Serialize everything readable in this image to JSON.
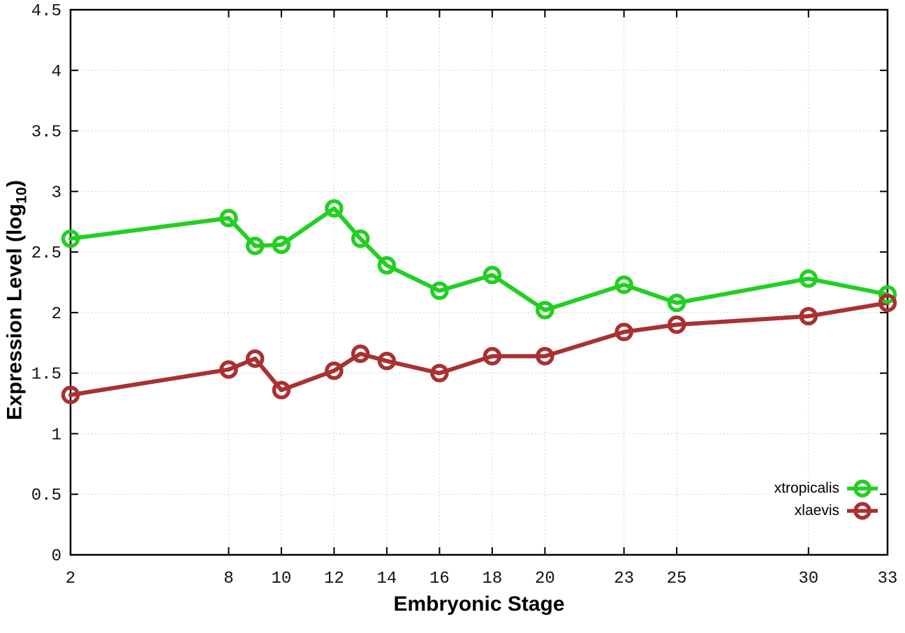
{
  "chart_data": {
    "type": "line",
    "title": "",
    "xlabel": "Embryonic Stage",
    "ylabel": {
      "prefix": "Expression Level (log",
      "subscript": "10",
      "suffix": ")"
    },
    "xlim": [
      2,
      33
    ],
    "ylim": [
      0,
      4.5
    ],
    "grid": true,
    "legend_position": "bottom-right",
    "x_ticks": [
      {
        "value": 2,
        "label": "2"
      },
      {
        "value": 8,
        "label": "8"
      },
      {
        "value": 10,
        "label": "10"
      },
      {
        "value": 12,
        "label": "12"
      },
      {
        "value": 14,
        "label": "14"
      },
      {
        "value": 16,
        "label": "16"
      },
      {
        "value": 18,
        "label": "18"
      },
      {
        "value": 20,
        "label": "20"
      },
      {
        "value": 23,
        "label": "23"
      },
      {
        "value": 25,
        "label": "25"
      },
      {
        "value": 30,
        "label": "30"
      },
      {
        "value": 33,
        "label": "33"
      }
    ],
    "y_ticks": [
      {
        "value": 0,
        "label": "0"
      },
      {
        "value": 0.5,
        "label": "0.5"
      },
      {
        "value": 1,
        "label": "1"
      },
      {
        "value": 1.5,
        "label": "1.5"
      },
      {
        "value": 2,
        "label": "2"
      },
      {
        "value": 2.5,
        "label": "2.5"
      },
      {
        "value": 3,
        "label": "3"
      },
      {
        "value": 3.5,
        "label": "3.5"
      },
      {
        "value": 4,
        "label": "4"
      },
      {
        "value": 4.5,
        "label": "4.5"
      }
    ],
    "x": [
      2,
      8,
      9,
      10,
      12,
      13,
      14,
      16,
      18,
      20,
      23,
      25,
      30,
      33
    ],
    "series": [
      {
        "name": "xtropicalis",
        "color": "#22cf22",
        "marker": "open-circle",
        "values": [
          2.61,
          2.78,
          2.55,
          2.56,
          2.86,
          2.61,
          2.39,
          2.18,
          2.31,
          2.02,
          2.23,
          2.08,
          2.28,
          2.15
        ]
      },
      {
        "name": "xlaevis",
        "color": "#a93131",
        "marker": "open-circle",
        "values": [
          1.32,
          1.53,
          1.62,
          1.36,
          1.52,
          1.66,
          1.6,
          1.5,
          1.64,
          1.64,
          1.84,
          1.9,
          1.97,
          2.08
        ]
      }
    ],
    "colors": {
      "background": "#ffffff",
      "border": "#000000",
      "grid": "#c4c4c4",
      "tick_text": "#111111"
    }
  }
}
